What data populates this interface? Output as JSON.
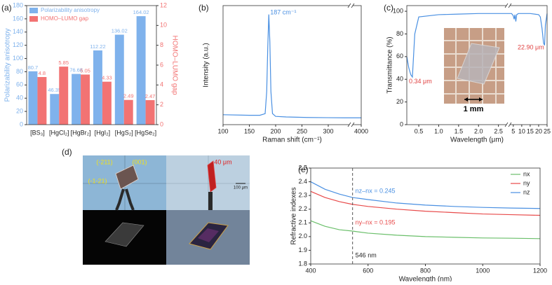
{
  "chart_data": [
    {
      "type": "bar",
      "panel_label": "(a)",
      "categories": [
        "[BS₃]",
        "[HgCl₂]",
        "[HgBr₂]",
        "[HgI₂]",
        "[HgS₂]",
        "[HgSe₂]"
      ],
      "series": [
        {
          "name": "Polarizability anisotropy",
          "color": "#7fb2ec",
          "values": [
            80.7,
            46.35,
            76.68,
            112.22,
            136.02,
            164.02
          ]
        },
        {
          "name": "HOMO–LUMO gap",
          "color": "#f27373",
          "axis": "y2",
          "values": [
            4.8,
            5.85,
            5.05,
            4.33,
            2.49,
            2.47
          ]
        }
      ],
      "ylabel": "Polarizability anisotropy",
      "y2label": "HOMO–LUMO gap",
      "ylim": [
        0,
        180
      ],
      "yticks": [
        0,
        20,
        40,
        60,
        80,
        100,
        120,
        140,
        160,
        180
      ],
      "y2lim": [
        0,
        12
      ],
      "y2ticks": [
        0,
        2,
        4,
        6,
        8,
        10,
        12
      ],
      "legend": "upper left"
    },
    {
      "type": "line",
      "panel_label": "(b)",
      "xlabel": "Raman shift (cm⁻¹)",
      "ylabel": "Intensity (a.u.)",
      "annotation": "187 cm⁻¹",
      "x": [
        100,
        150,
        170,
        180,
        183,
        185,
        187,
        189,
        191,
        194,
        200,
        220,
        260,
        300,
        330,
        3980,
        4000
      ],
      "values": [
        0.09,
        0.085,
        0.085,
        0.1,
        0.3,
        0.7,
        1.0,
        0.75,
        0.3,
        0.1,
        0.075,
        0.07,
        0.065,
        0.063,
        0.062,
        0.062,
        0.062
      ],
      "color": "#4a90e2",
      "xlim": [
        100,
        4000
      ],
      "xbreak": [
        340,
        3975
      ],
      "xticks": [
        100,
        150,
        200,
        250,
        300,
        4000
      ],
      "ylim": [
        0,
        1.08
      ]
    },
    {
      "type": "line",
      "panel_label": "(c)",
      "xlabel": "Wavelength (μm)",
      "ylabel": "Transmittance (%)",
      "annotations": [
        "0.34 μm",
        "22.90 μm"
      ],
      "inset_label": "1 mm",
      "x": [
        0.2,
        0.25,
        0.3,
        0.34,
        0.4,
        0.5,
        1,
        1.5,
        2,
        2.5,
        2.7,
        3,
        4,
        5,
        5.5,
        6,
        6.5,
        7,
        8,
        10,
        15,
        20,
        21,
        22,
        22.9,
        23.5,
        24,
        25
      ],
      "values": [
        60,
        50,
        44,
        42,
        80,
        95,
        97,
        97.5,
        98,
        98,
        98,
        98,
        98,
        96,
        93,
        97,
        91,
        97,
        98,
        98,
        98,
        97,
        95,
        85,
        72,
        70,
        88,
        98
      ],
      "color": "#4a90e2",
      "xlim": [
        0.2,
        25
      ],
      "xbreak": [
        2.7,
        3
      ],
      "xticks": [
        0.5,
        {
          "value": 1,
          "label": "1.0"
        },
        1.5,
        {
          "value": 2,
          "label": "2.0"
        },
        2.5,
        5,
        10,
        15,
        20,
        25
      ],
      "ylim": [
        0,
        105
      ],
      "yticks": [
        0,
        20,
        40,
        60,
        80,
        100
      ]
    },
    {
      "type": "line",
      "panel_label": "(e)",
      "xlabel": "Wavelength (nm)",
      "ylabel": "Refractive indexes",
      "annotations": [
        "nz–nx = 0.245",
        "ny–nx = 0.195"
      ],
      "vline": 546,
      "vline_label": "546 nm",
      "x": [
        400,
        450,
        500,
        546,
        600,
        700,
        800,
        900,
        1000,
        1100,
        1200
      ],
      "series": [
        {
          "name": "nx",
          "color": "#6abf6a",
          "values": [
            2.115,
            2.075,
            2.05,
            2.04,
            2.025,
            2.01,
            2.0,
            1.995,
            1.99,
            1.988,
            1.985
          ]
        },
        {
          "name": "ny",
          "color": "#e84a4a",
          "values": [
            2.33,
            2.285,
            2.255,
            2.235,
            2.22,
            2.2,
            2.185,
            2.175,
            2.165,
            2.16,
            2.155
          ]
        },
        {
          "name": "nz",
          "color": "#4a90e2",
          "values": [
            2.4,
            2.345,
            2.31,
            2.285,
            2.27,
            2.245,
            2.23,
            2.22,
            2.213,
            2.208,
            2.205
          ]
        }
      ],
      "xlim": [
        400,
        1200
      ],
      "xticks": [
        400,
        600,
        800,
        1000,
        1200
      ],
      "ylim": [
        1.8,
        2.5
      ],
      "yticks": [
        1.8,
        1.9,
        {
          "value": 2,
          "label": "2.0"
        },
        2.1,
        2.2,
        2.3,
        2.4,
        2.5
      ],
      "legend": "upper right"
    }
  ],
  "image_panel": {
    "panel_label": "(d)",
    "labels": [
      "(-211)",
      "(001)",
      "(-1-21)",
      "40 μm",
      "100 μm"
    ]
  }
}
